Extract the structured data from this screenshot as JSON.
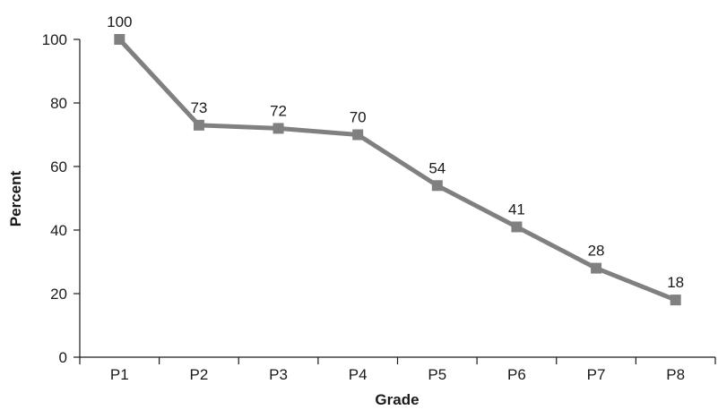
{
  "chart_data": {
    "type": "line",
    "title": "",
    "xlabel": "Grade",
    "ylabel": "Percent",
    "categories": [
      "P1",
      "P2",
      "P3",
      "P4",
      "P5",
      "P6",
      "P7",
      "P8"
    ],
    "series": [
      {
        "values": [
          100,
          73,
          72,
          70,
          54,
          41,
          28,
          18
        ],
        "data_labels": [
          "100",
          "73",
          "72",
          "70",
          "54",
          "41",
          "28",
          "18"
        ]
      }
    ],
    "ylim": [
      0,
      100
    ],
    "yticks": [
      0,
      20,
      40,
      60,
      80,
      100
    ],
    "ytick_labels": [
      "0",
      "20",
      "40",
      "60",
      "80",
      "100"
    ],
    "grid": false,
    "legend": "none",
    "marker": "square",
    "colors": {
      "line": "#808080",
      "marker": "#808080",
      "axis": "#1a1a1a",
      "text": "#1a1a1a"
    }
  }
}
